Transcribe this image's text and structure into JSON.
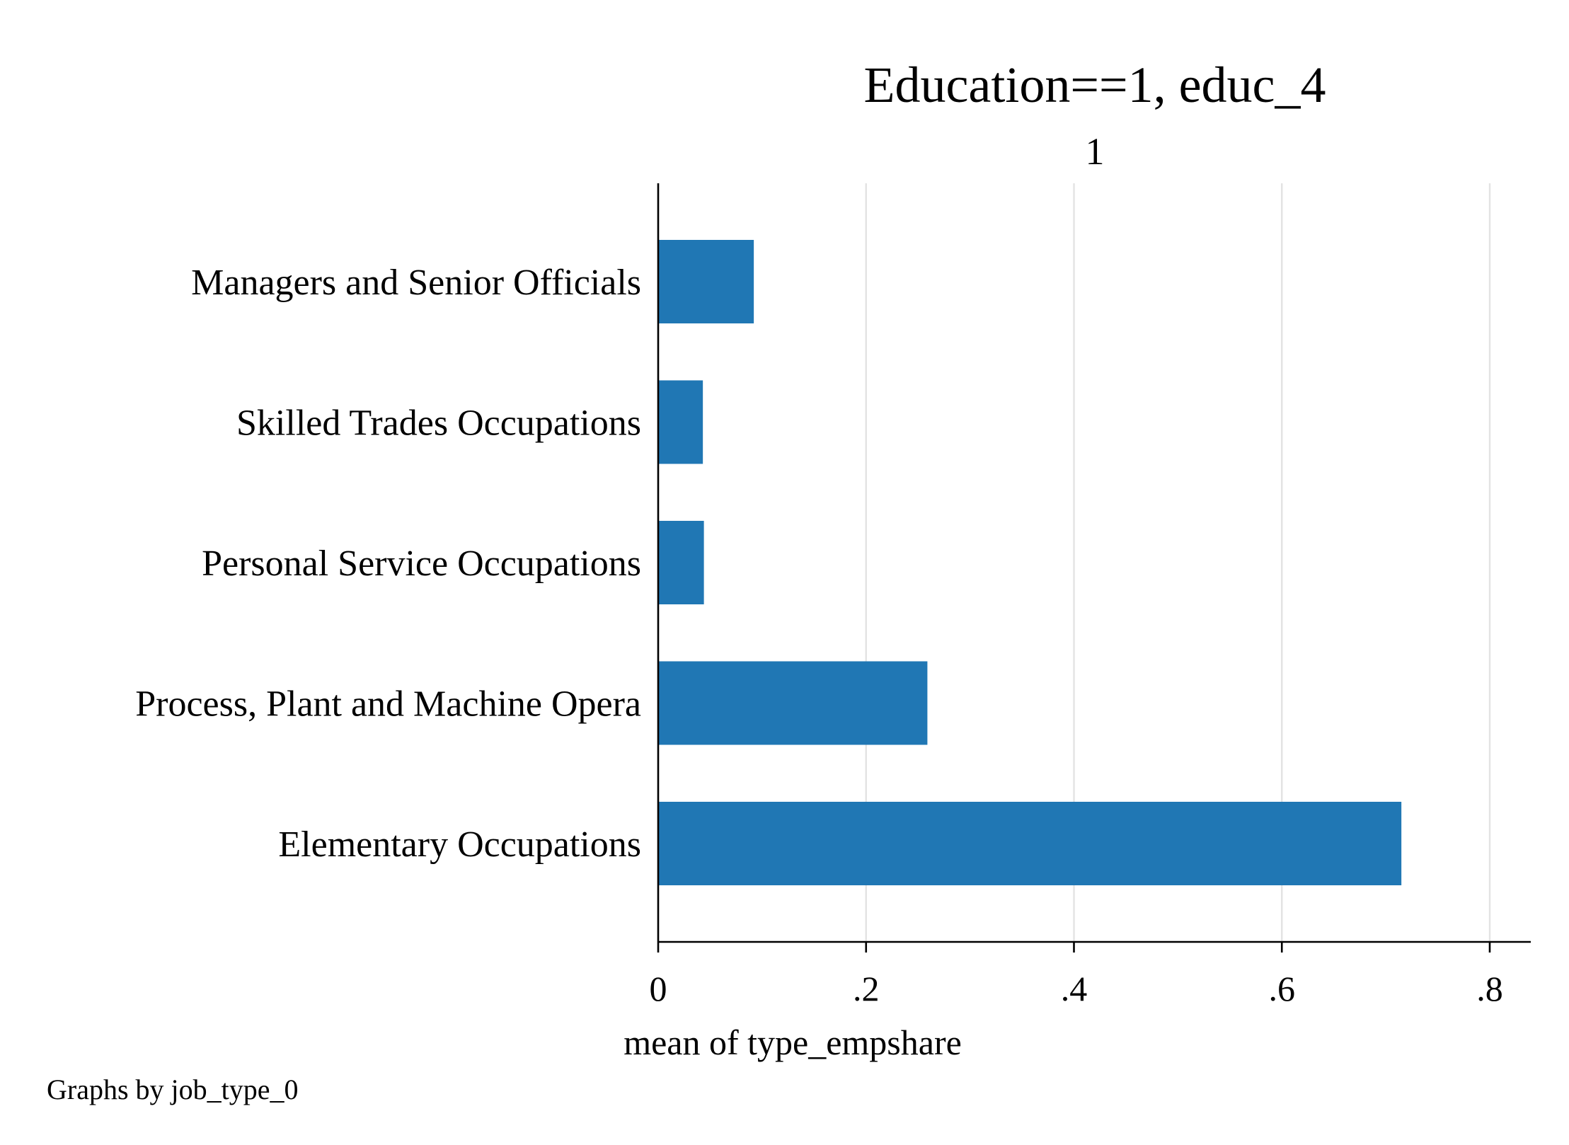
{
  "chart_data": {
    "type": "bar",
    "orientation": "horizontal",
    "title": "Education==1, educ_4",
    "subtitle": "1",
    "categories": [
      "Managers and Senior Officials",
      "Skilled Trades Occupations",
      "Personal Service Occupations",
      "Process, Plant and Machine Opera",
      "Elementary Occupations"
    ],
    "values": [
      0.092,
      0.043,
      0.044,
      0.259,
      0.715
    ],
    "xlabel": "mean of type_empshare",
    "ylabel": "",
    "xlim": [
      0,
      0.8
    ],
    "xticks": [
      0,
      0.2,
      0.4,
      0.6,
      0.8
    ],
    "xtick_labels": [
      "0",
      ".2",
      ".4",
      ".6",
      ".8"
    ],
    "grid": "vertical",
    "legend": "none",
    "note": "Graphs by job_type_0",
    "colors": {
      "bar": "#2077b4",
      "grid": "#e3e3e3",
      "axis": "#000000",
      "background": "#ffffff"
    }
  }
}
